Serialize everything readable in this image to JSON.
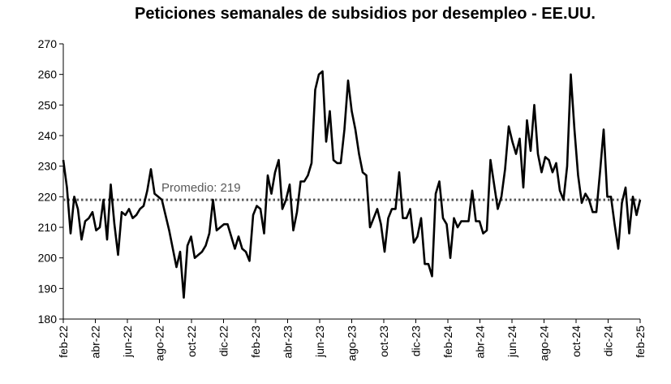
{
  "chart_data": {
    "type": "line",
    "title": "Peticiones semanales de subsidios por desempleo - EE.UU.",
    "xlabel": "",
    "ylabel": "",
    "ylim": [
      180,
      270
    ],
    "yticks": [
      180,
      190,
      200,
      210,
      220,
      230,
      240,
      250,
      260,
      270
    ],
    "xticks": [
      "feb-22",
      "abr-22",
      "jun-22",
      "ago-22",
      "oct-22",
      "dic-22",
      "feb-23",
      "abr-23",
      "jun-23",
      "ago-23",
      "oct-23",
      "dic-23",
      "feb-24",
      "abr-24",
      "jun-24",
      "ago-24",
      "oct-24",
      "dic-24",
      "feb-25"
    ],
    "grid": false,
    "legend": "none",
    "series": [
      {
        "values": [
          232,
          223,
          208,
          220,
          216,
          206,
          212,
          213,
          215,
          209,
          210,
          219,
          206,
          224,
          211,
          201,
          215,
          214,
          216,
          213,
          214,
          216,
          217,
          222,
          229,
          221,
          220,
          219,
          214,
          209,
          203,
          197,
          202,
          187,
          204,
          207,
          200,
          201,
          202,
          204,
          208,
          219,
          209,
          210,
          211,
          211,
          207,
          203,
          207,
          203,
          202,
          199,
          214,
          217,
          216,
          208,
          227,
          221,
          228,
          232,
          216,
          219,
          224,
          209,
          215,
          225,
          225,
          227,
          231,
          255,
          260,
          261,
          238,
          248,
          232,
          231,
          231,
          242,
          258,
          248,
          242,
          234,
          228,
          227,
          210,
          213,
          216,
          211,
          202,
          213,
          216,
          216,
          228,
          213,
          213,
          216,
          205,
          207,
          213,
          198,
          198,
          194,
          221,
          225,
          213,
          211,
          200,
          213,
          210,
          212,
          212,
          212,
          222,
          212,
          212,
          208,
          209,
          232,
          224,
          216,
          220,
          229,
          243,
          238,
          234,
          239,
          223,
          245,
          235,
          250,
          234,
          228,
          233,
          232,
          228,
          231,
          222,
          219,
          230,
          260,
          242,
          227,
          218,
          221,
          219,
          215,
          215,
          228,
          242,
          220,
          220,
          211,
          203,
          218,
          223,
          208,
          220,
          214,
          219
        ],
        "color": "#000000"
      }
    ],
    "average": {
      "label": "Promedio: 219",
      "value": 219,
      "color": "#595959"
    }
  }
}
